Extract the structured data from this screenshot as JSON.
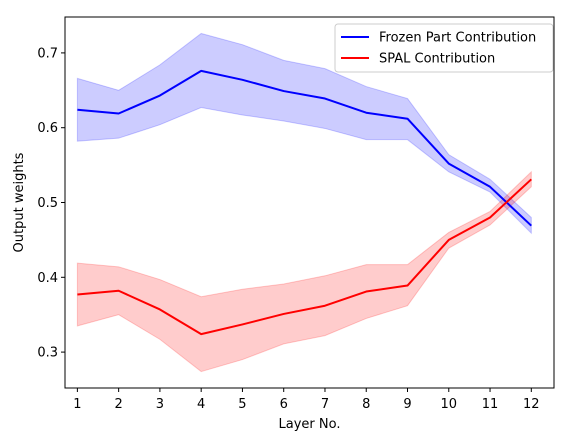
{
  "chart_data": {
    "type": "line",
    "xlabel": "Layer No.",
    "ylabel": "Output weights",
    "x": [
      1,
      2,
      3,
      4,
      5,
      6,
      7,
      8,
      9,
      10,
      11,
      12
    ],
    "xlim": [
      0.7,
      12.55
    ],
    "ylim": [
      0.252,
      0.748
    ],
    "yticks": [
      0.3,
      0.4,
      0.5,
      0.6,
      0.7
    ],
    "ytick_labels": [
      "0.3",
      "0.4",
      "0.5",
      "0.6",
      "0.7"
    ],
    "xtick_labels": [
      "1",
      "2",
      "3",
      "4",
      "5",
      "6",
      "7",
      "8",
      "9",
      "10",
      "11",
      "12"
    ],
    "grid": false,
    "legend_position": "top-right",
    "series": [
      {
        "name": "Frozen Part Contribution",
        "color": "#0000ff",
        "band_color": "#0000ff",
        "values": [
          0.624,
          0.619,
          0.643,
          0.676,
          0.664,
          0.649,
          0.639,
          0.62,
          0.612,
          0.552,
          0.521,
          0.469
        ],
        "upper": [
          0.666,
          0.65,
          0.684,
          0.726,
          0.711,
          0.69,
          0.679,
          0.655,
          0.639,
          0.564,
          0.531,
          0.48
        ],
        "lower": [
          0.582,
          0.586,
          0.604,
          0.627,
          0.617,
          0.609,
          0.599,
          0.584,
          0.584,
          0.541,
          0.514,
          0.459
        ]
      },
      {
        "name": "SPAL Contribution",
        "color": "#ff0000",
        "band_color": "#ff0000",
        "values": [
          0.377,
          0.382,
          0.357,
          0.324,
          0.337,
          0.351,
          0.362,
          0.381,
          0.389,
          0.45,
          0.48,
          0.531
        ],
        "upper": [
          0.419,
          0.414,
          0.397,
          0.374,
          0.384,
          0.391,
          0.402,
          0.417,
          0.417,
          0.46,
          0.488,
          0.541
        ],
        "lower": [
          0.335,
          0.35,
          0.317,
          0.274,
          0.29,
          0.311,
          0.322,
          0.345,
          0.362,
          0.439,
          0.47,
          0.521
        ]
      }
    ]
  }
}
